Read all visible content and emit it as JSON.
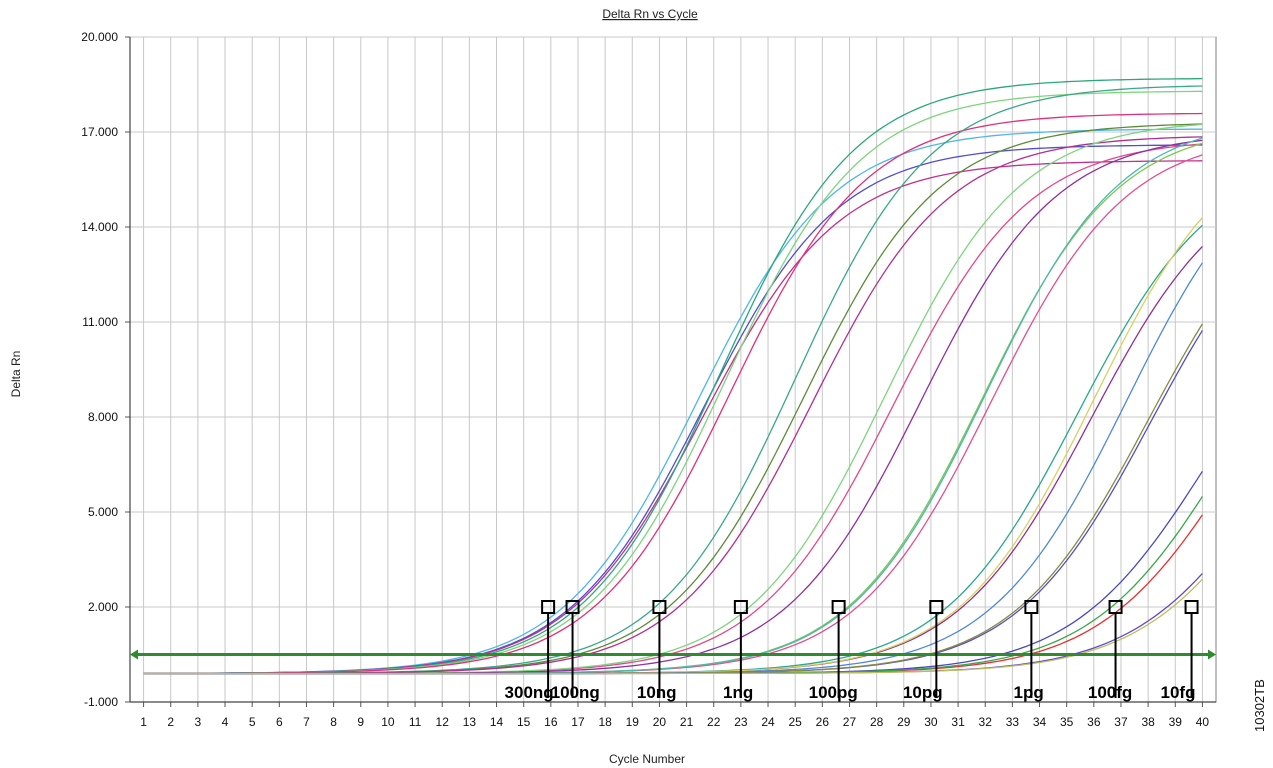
{
  "chart_data": {
    "type": "line",
    "title": "Delta Rn vs Cycle",
    "xlabel": "Cycle Number",
    "ylabel": "Delta Rn",
    "x_ticks": [
      "1",
      "2",
      "3",
      "4",
      "5",
      "6",
      "7",
      "8",
      "9",
      "10",
      "11",
      "12",
      "13",
      "14",
      "15",
      "16",
      "17",
      "18",
      "19",
      "20",
      "21",
      "22",
      "23",
      "24",
      "25",
      "26",
      "27",
      "28",
      "29",
      "30",
      "31",
      "32",
      "33",
      "34",
      "35",
      "36",
      "37",
      "38",
      "39",
      "40"
    ],
    "y_ticks": [
      "20.000",
      "17.000",
      "14.000",
      "11.000",
      "8.000",
      "5.000",
      "2.000",
      "-1.000"
    ],
    "xlim": [
      0.5,
      40.5
    ],
    "ylim": [
      -1,
      20
    ],
    "grid": true,
    "threshold": 0.5,
    "threshold_color": "#2e8b2e",
    "baseline_level": -0.1,
    "corner_label": "10302TB",
    "dilutions": [
      {
        "label": "300ng",
        "ct": 15.9,
        "label_cycle": 15.2
      },
      {
        "label": "100ng",
        "ct": 16.8,
        "label_cycle": 16.9
      },
      {
        "label": "10ng",
        "ct": 20.0,
        "label_cycle": 19.9
      },
      {
        "label": "1ng",
        "ct": 23.0,
        "label_cycle": 22.9
      },
      {
        "label": "100pg",
        "ct": 26.6,
        "label_cycle": 26.4
      },
      {
        "label": "10pg",
        "ct": 30.2,
        "label_cycle": 29.7
      },
      {
        "label": "1pg",
        "ct": 33.7,
        "label_cycle": 33.6
      },
      {
        "label": "100fg",
        "ct": 36.8,
        "label_cycle": 36.6
      },
      {
        "label": "10fg",
        "ct": 39.6,
        "label_cycle": 39.1
      }
    ],
    "series": [
      {
        "color": "#4fb7e8",
        "plateau": 17.1,
        "mid": 21.4,
        "k": 0.4
      },
      {
        "color": "#4f4fd0",
        "plateau": 16.6,
        "mid": 21.6,
        "k": 0.4
      },
      {
        "color": "#c0308c",
        "plateau": 16.1,
        "mid": 21.6,
        "k": 0.4
      },
      {
        "color": "#2aa87a",
        "plateau": 18.7,
        "mid": 22.2,
        "k": 0.4
      },
      {
        "color": "#7ed47e",
        "plateau": 18.3,
        "mid": 22.4,
        "k": 0.4
      },
      {
        "color": "#e0307c",
        "plateau": 17.6,
        "mid": 22.6,
        "k": 0.4
      },
      {
        "color": "#3aa88a",
        "plateau": 18.5,
        "mid": 25.0,
        "k": 0.4
      },
      {
        "color": "#5c8c3a",
        "plateau": 17.3,
        "mid": 25.3,
        "k": 0.4
      },
      {
        "color": "#b03090",
        "plateau": 16.9,
        "mid": 25.6,
        "k": 0.4
      },
      {
        "color": "#e04a8a",
        "plateau": 16.8,
        "mid": 28.6,
        "k": 0.4
      },
      {
        "color": "#7ed47e",
        "plateau": 17.4,
        "mid": 28.3,
        "k": 0.4
      },
      {
        "color": "#9030a0",
        "plateau": 17.0,
        "mid": 29.6,
        "k": 0.4
      },
      {
        "color": "#7ac850",
        "plateau": 17.3,
        "mid": 31.9,
        "k": 0.4
      },
      {
        "color": "#e05090",
        "plateau": 17.0,
        "mid": 32.2,
        "k": 0.4
      },
      {
        "color": "#4fb7b0",
        "plateau": 17.5,
        "mid": 32.0,
        "k": 0.4
      },
      {
        "color": "#2aa88a",
        "plateau": 16.3,
        "mid": 35.4,
        "k": 0.4
      },
      {
        "color": "#903090",
        "plateau": 16.0,
        "mid": 35.9,
        "k": 0.4
      },
      {
        "color": "#d8d060",
        "plateau": 17.2,
        "mid": 36.0,
        "k": 0.4
      },
      {
        "color": "#5088d8",
        "plateau": 17.1,
        "mid": 37.2,
        "k": 0.4
      },
      {
        "color": "#4f4fd0",
        "plateau": 15.8,
        "mid": 38.1,
        "k": 0.4
      },
      {
        "color": "#8a8a40",
        "plateau": 15.9,
        "mid": 38.0,
        "k": 0.4
      },
      {
        "color": "#4848c0",
        "plateau": 13.2,
        "mid": 40.2,
        "k": 0.4
      },
      {
        "color": "#e83030",
        "plateau": 13.0,
        "mid": 41.2,
        "k": 0.4
      },
      {
        "color": "#3aa84a",
        "plateau": 13.5,
        "mid": 40.9,
        "k": 0.4
      },
      {
        "color": "#6848c0",
        "plateau": 12.0,
        "mid": 42.6,
        "k": 0.4
      },
      {
        "color": "#b8c060",
        "plateau": 12.0,
        "mid": 42.8,
        "k": 0.4
      }
    ]
  }
}
